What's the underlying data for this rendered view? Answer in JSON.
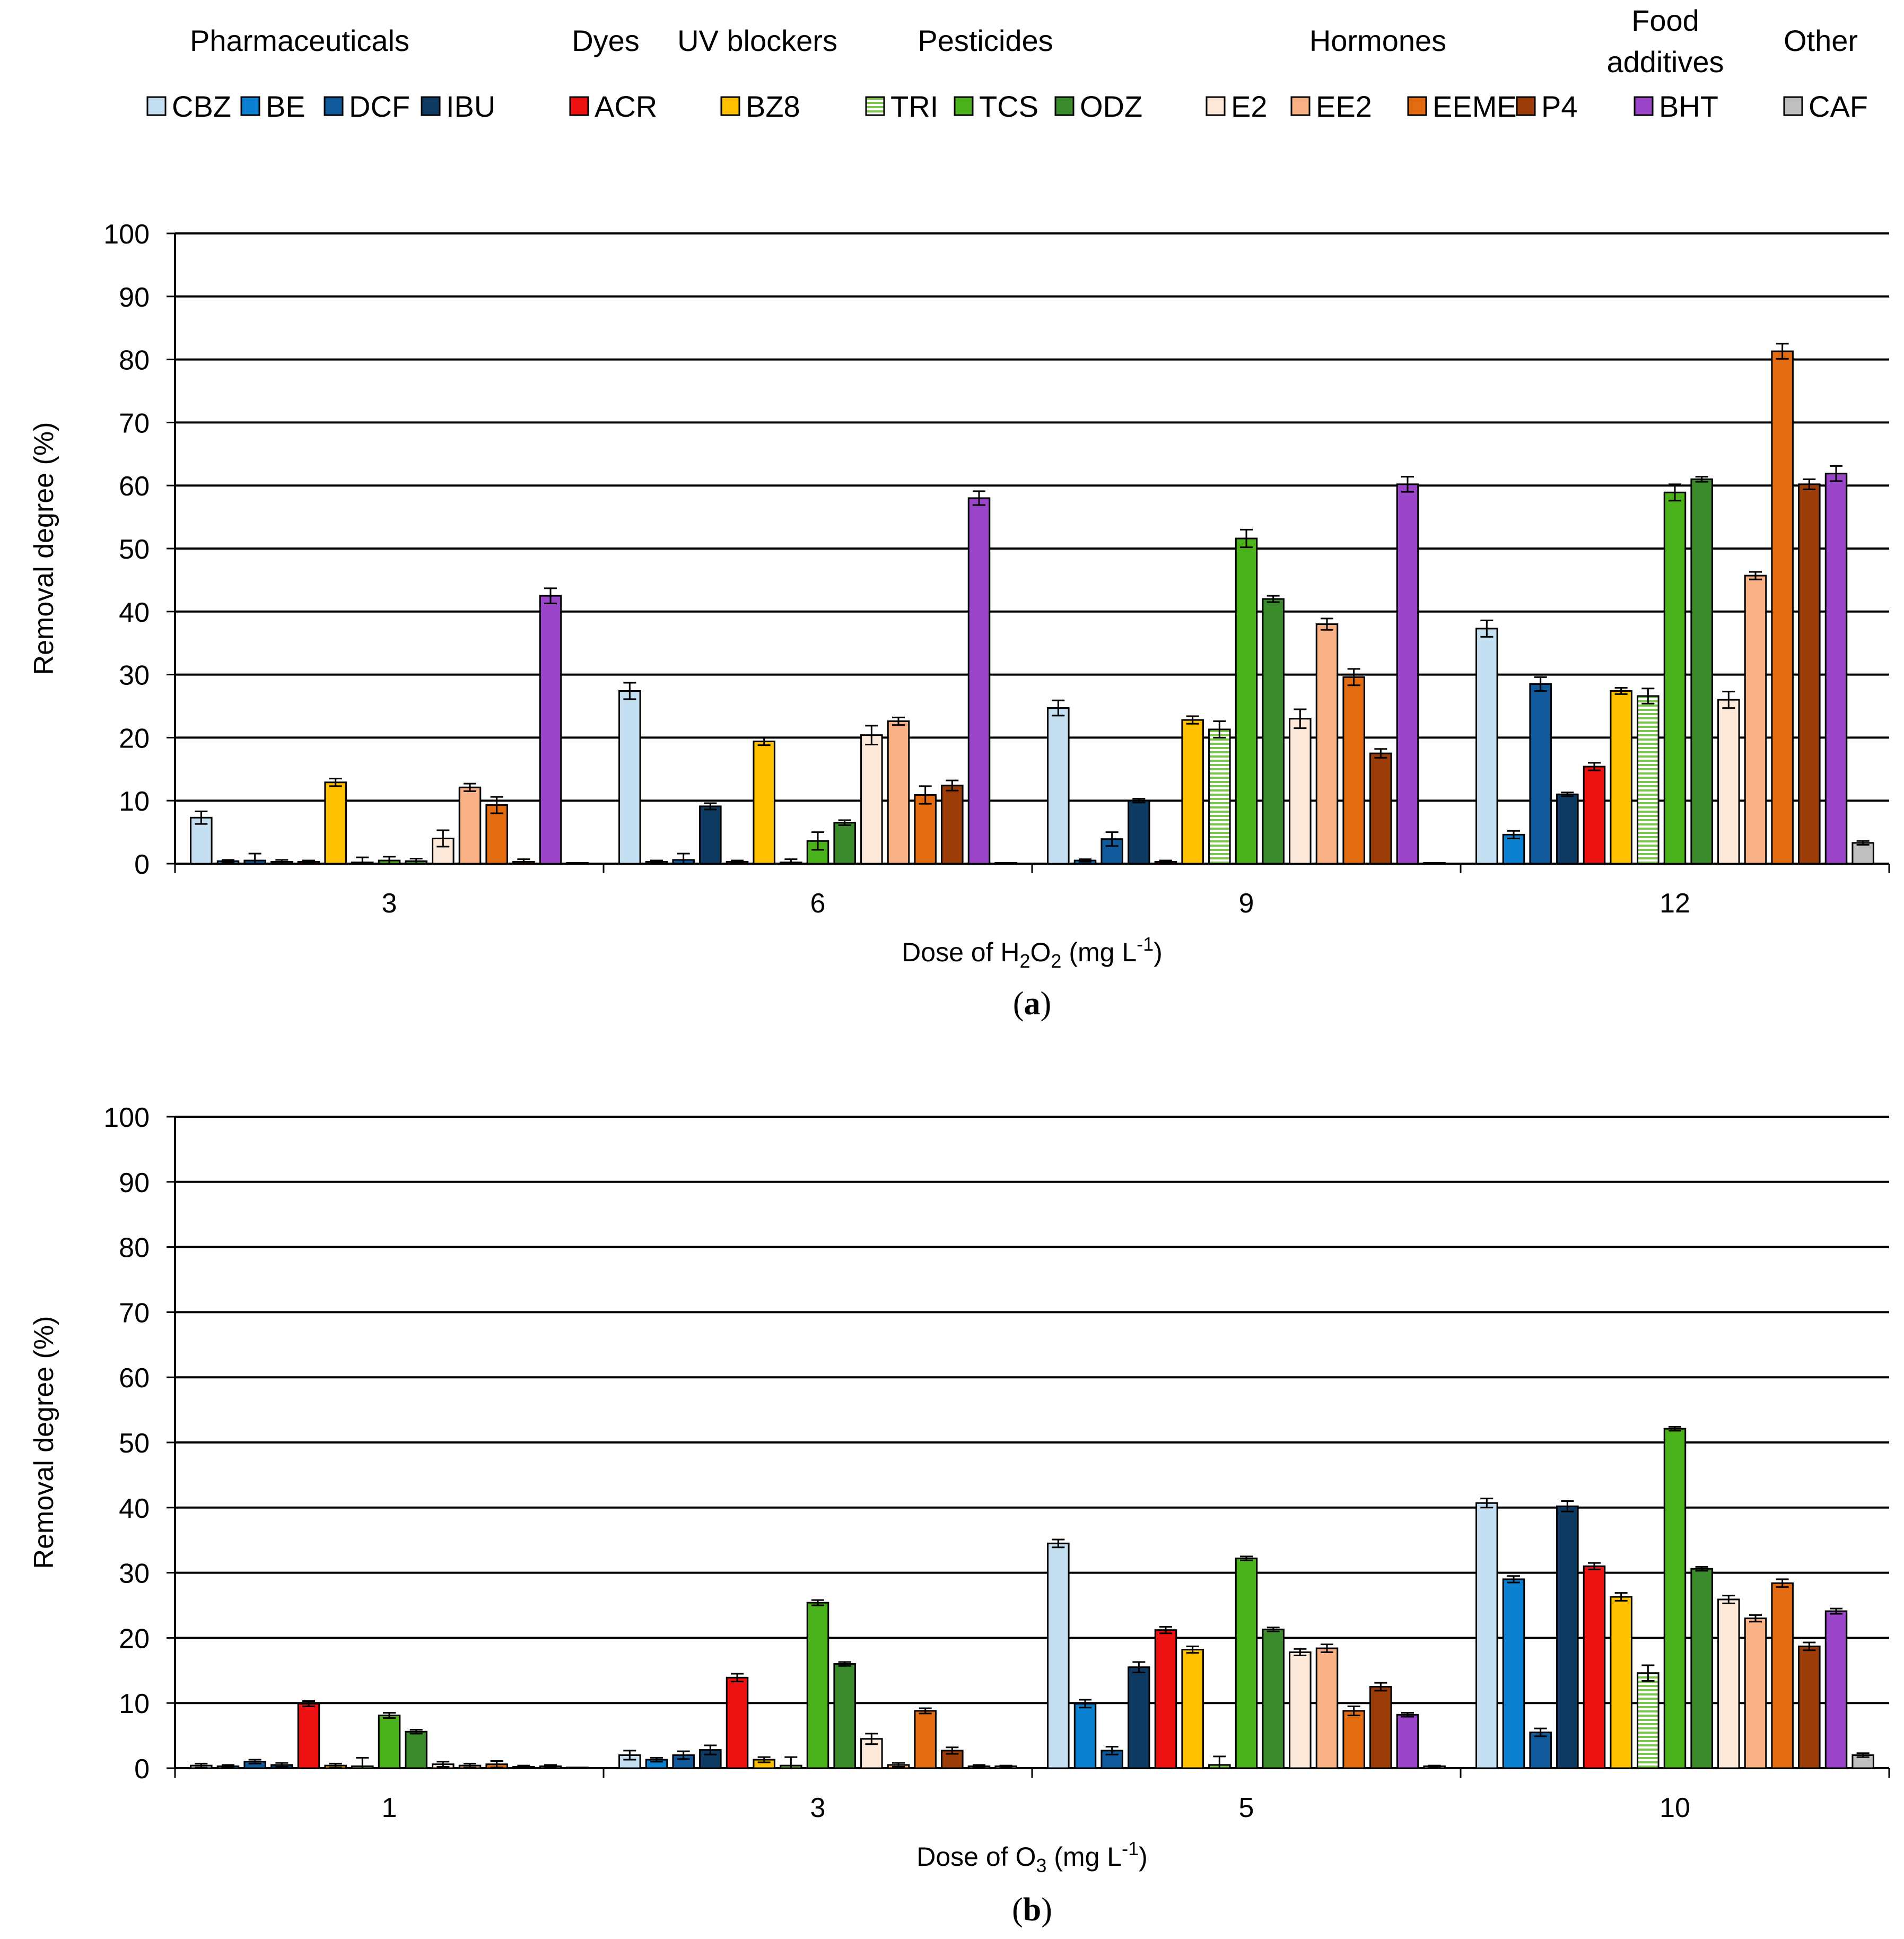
{
  "legend": {
    "groups": [
      {
        "label": "Pharmaceuticals",
        "items": [
          {
            "id": "CBZ",
            "label": "CBZ",
            "color": "#c5dff2"
          },
          {
            "id": "BE",
            "label": "BE",
            "color": "#0b7fd0"
          },
          {
            "id": "DCF",
            "label": "DCF",
            "color": "#10599a"
          },
          {
            "id": "IBU",
            "label": "IBU",
            "color": "#0f3b63"
          }
        ]
      },
      {
        "label": "Dyes",
        "items": [
          {
            "id": "ACR",
            "label": "ACR",
            "color": "#ee1111"
          }
        ]
      },
      {
        "label": "UV blockers",
        "items": [
          {
            "id": "BZ8",
            "label": "BZ8",
            "color": "#ffc000"
          }
        ]
      },
      {
        "label": "Pesticides",
        "items": [
          {
            "id": "TRI",
            "label": "TRI",
            "color": "#e2f0d0",
            "pattern": "hstripes"
          },
          {
            "id": "TCS",
            "label": "TCS",
            "color": "#4cb21c"
          },
          {
            "id": "ODZ",
            "label": "ODZ",
            "color": "#3b8a2c"
          }
        ]
      },
      {
        "label": "Hormones",
        "items": [
          {
            "id": "E2",
            "label": "E2",
            "color": "#fde9d9"
          },
          {
            "id": "EE2",
            "label": "EE2",
            "color": "#f8b084"
          },
          {
            "id": "EEME",
            "label": "EEME",
            "color": "#e36c10"
          },
          {
            "id": "P4",
            "label": "P4",
            "color": "#9c3c08"
          }
        ]
      },
      {
        "label_lines": [
          "Food",
          "additives"
        ],
        "items": [
          {
            "id": "BHT",
            "label": "BHT",
            "color": "#9b45c9"
          }
        ]
      },
      {
        "label": "Other",
        "items": [
          {
            "id": "CAF",
            "label": "CAF",
            "color": "#bfbfbf"
          }
        ]
      }
    ]
  },
  "chart_data": [
    {
      "type": "bar",
      "panel": "(a)",
      "xlabel_main": "Dose of H",
      "xlabel_sub1": "2",
      "xlabel_mid": "O",
      "xlabel_sub2": "2",
      "xlabel_unit": " (mg L",
      "xlabel_sup": "-1",
      "xlabel_end": ")",
      "ylabel": "Removal degree (%)",
      "ylim": [
        0,
        100
      ],
      "yticks": [
        "0",
        "10",
        "20",
        "30",
        "40",
        "50",
        "60",
        "70",
        "80",
        "90",
        "100"
      ],
      "categories": [
        "3",
        "6",
        "9",
        "12"
      ],
      "grid": true,
      "series": [
        {
          "name": "CBZ",
          "values": [
            7.3,
            27.4,
            24.7,
            37.3
          ],
          "errors": [
            1.0,
            1.3,
            1.2,
            1.3
          ]
        },
        {
          "name": "BE",
          "values": [
            0.4,
            0.3,
            0.5,
            4.6
          ],
          "errors": [
            0.2,
            0.2,
            0.2,
            0.6
          ]
        },
        {
          "name": "DCF",
          "values": [
            0.5,
            0.6,
            3.9,
            28.5
          ],
          "errors": [
            1.1,
            1.0,
            1.1,
            1.1
          ]
        },
        {
          "name": "IBU",
          "values": [
            0.3,
            9.1,
            10.0,
            11.0
          ],
          "errors": [
            0.3,
            0.5,
            0.3,
            0.3
          ]
        },
        {
          "name": "ACR",
          "values": [
            0.3,
            0.3,
            0.3,
            15.4
          ],
          "errors": [
            0.2,
            0.2,
            0.2,
            0.6
          ]
        },
        {
          "name": "BZ8",
          "values": [
            12.9,
            19.4,
            22.8,
            27.4
          ],
          "errors": [
            0.6,
            0.6,
            0.6,
            0.5
          ]
        },
        {
          "name": "TRI",
          "values": [
            0.2,
            0.2,
            21.3,
            26.6
          ],
          "errors": [
            0.8,
            0.5,
            1.3,
            1.2
          ]
        },
        {
          "name": "TCS",
          "values": [
            0.5,
            3.6,
            51.6,
            58.9
          ],
          "errors": [
            0.6,
            1.4,
            1.4,
            1.3
          ]
        },
        {
          "name": "ODZ",
          "values": [
            0.4,
            6.5,
            42.0,
            61.0
          ],
          "errors": [
            0.4,
            0.4,
            0.5,
            0.4
          ]
        },
        {
          "name": "E2",
          "values": [
            4.0,
            20.4,
            23.0,
            26.0
          ],
          "errors": [
            1.3,
            1.5,
            1.5,
            1.3
          ]
        },
        {
          "name": "EE2",
          "values": [
            12.1,
            22.6,
            38.0,
            45.7
          ],
          "errors": [
            0.6,
            0.6,
            0.9,
            0.6
          ]
        },
        {
          "name": "EEME",
          "values": [
            9.3,
            10.9,
            29.6,
            81.3
          ],
          "errors": [
            1.3,
            1.4,
            1.3,
            1.2
          ]
        },
        {
          "name": "P4",
          "values": [
            0.3,
            12.4,
            17.5,
            60.2
          ],
          "errors": [
            0.4,
            0.8,
            0.7,
            0.8
          ]
        },
        {
          "name": "BHT",
          "values": [
            42.5,
            58.0,
            60.2,
            61.9
          ],
          "errors": [
            1.2,
            1.1,
            1.2,
            1.2
          ]
        },
        {
          "name": "CAF",
          "values": [
            0.1,
            0.1,
            0.1,
            3.3
          ],
          "errors": [
            0.0,
            0.0,
            0.0,
            0.3
          ]
        }
      ]
    },
    {
      "type": "bar",
      "panel": "(b)",
      "xlabel_main": "Dose of O",
      "xlabel_sub1": "3",
      "xlabel_mid": "",
      "xlabel_sub2": "",
      "xlabel_unit": " (mg L",
      "xlabel_sup": "-1",
      "xlabel_end": ")",
      "ylabel": "Removal degree (%)",
      "ylim": [
        0,
        100
      ],
      "yticks": [
        "0",
        "10",
        "20",
        "30",
        "40",
        "50",
        "60",
        "70",
        "80",
        "90",
        "100"
      ],
      "categories": [
        "1",
        "3",
        "5",
        "10"
      ],
      "grid": true,
      "series": [
        {
          "name": "CBZ",
          "values": [
            0.4,
            2.0,
            34.5,
            40.7
          ],
          "errors": [
            0.3,
            0.7,
            0.6,
            0.7
          ]
        },
        {
          "name": "BE",
          "values": [
            0.3,
            1.3,
            9.9,
            29.0
          ],
          "errors": [
            0.2,
            0.3,
            0.6,
            0.5
          ]
        },
        {
          "name": "DCF",
          "values": [
            1.0,
            2.0,
            2.7,
            5.5
          ],
          "errors": [
            0.3,
            0.6,
            0.6,
            0.6
          ]
        },
        {
          "name": "IBU",
          "values": [
            0.5,
            2.8,
            15.5,
            40.2
          ],
          "errors": [
            0.3,
            0.7,
            0.8,
            0.8
          ]
        },
        {
          "name": "ACR",
          "values": [
            9.9,
            13.9,
            21.2,
            31.0
          ],
          "errors": [
            0.4,
            0.6,
            0.5,
            0.5
          ]
        },
        {
          "name": "BZ8",
          "values": [
            0.4,
            1.3,
            18.2,
            26.3
          ],
          "errors": [
            0.3,
            0.4,
            0.5,
            0.6
          ]
        },
        {
          "name": "TRI",
          "values": [
            0.3,
            0.4,
            0.5,
            14.6
          ],
          "errors": [
            1.3,
            1.3,
            1.3,
            1.2
          ]
        },
        {
          "name": "TCS",
          "values": [
            8.1,
            25.4,
            32.2,
            52.1
          ],
          "errors": [
            0.4,
            0.4,
            0.3,
            0.3
          ]
        },
        {
          "name": "ODZ",
          "values": [
            5.6,
            16.0,
            21.3,
            30.6
          ],
          "errors": [
            0.3,
            0.3,
            0.3,
            0.3
          ]
        },
        {
          "name": "E2",
          "values": [
            0.6,
            4.5,
            17.8,
            25.9
          ],
          "errors": [
            0.4,
            0.8,
            0.5,
            0.6
          ]
        },
        {
          "name": "EE2",
          "values": [
            0.4,
            0.5,
            18.4,
            23.0
          ],
          "errors": [
            0.3,
            0.3,
            0.6,
            0.5
          ]
        },
        {
          "name": "EEME",
          "values": [
            0.6,
            8.8,
            8.8,
            28.4
          ],
          "errors": [
            0.5,
            0.4,
            0.7,
            0.6
          ]
        },
        {
          "name": "P4",
          "values": [
            0.2,
            2.7,
            12.5,
            18.7
          ],
          "errors": [
            0.2,
            0.5,
            0.6,
            0.6
          ]
        },
        {
          "name": "BHT",
          "values": [
            0.3,
            0.3,
            8.2,
            24.1
          ],
          "errors": [
            0.2,
            0.2,
            0.3,
            0.4
          ]
        },
        {
          "name": "CAF",
          "values": [
            0.1,
            0.3,
            0.3,
            2.0
          ],
          "errors": [
            0.0,
            0.1,
            0.1,
            0.3
          ]
        }
      ]
    }
  ]
}
